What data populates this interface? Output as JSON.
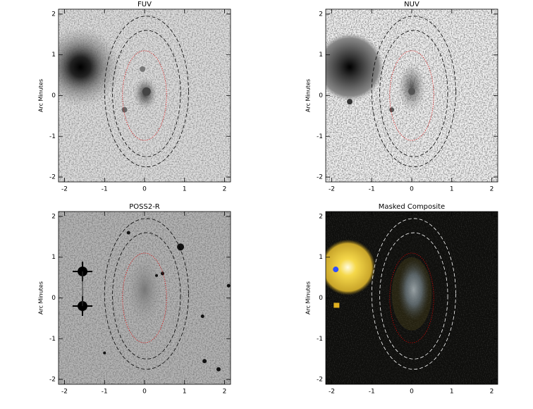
{
  "chart_data": [
    {
      "type": "image",
      "title": "FUV",
      "ylabel": "Arc Minutes",
      "xlim": [
        -2.15,
        2.15
      ],
      "ylim": [
        -2.12,
        2.12
      ],
      "xticks": [
        -2,
        -1,
        0,
        1,
        2
      ],
      "yticks": [
        -2,
        -1,
        0,
        1,
        2
      ]
    },
    {
      "type": "image",
      "title": "NUV",
      "ylabel": "Arc Minutes",
      "xlim": [
        -2.15,
        2.15
      ],
      "ylim": [
        -2.12,
        2.12
      ],
      "xticks": [
        -2,
        -1,
        0,
        1,
        2
      ],
      "yticks": [
        -2,
        -1,
        0,
        1,
        2
      ]
    },
    {
      "type": "image",
      "title": "POSS2-R",
      "ylabel": "Arc Minutes",
      "xlim": [
        -2.15,
        2.15
      ],
      "ylim": [
        -2.12,
        2.12
      ],
      "xticks": [
        -2,
        -1,
        0,
        1,
        2
      ],
      "yticks": [
        -2,
        -1,
        0,
        1,
        2
      ]
    },
    {
      "type": "image",
      "title": "Masked Composite",
      "ylabel": "Arc Minutes",
      "xlim": [
        -2.15,
        2.15
      ],
      "ylim": [
        -2.12,
        2.12
      ],
      "xticks": [
        -2,
        -1,
        0,
        1,
        2
      ],
      "yticks": [
        -2,
        -1,
        0,
        1,
        2
      ]
    }
  ]
}
